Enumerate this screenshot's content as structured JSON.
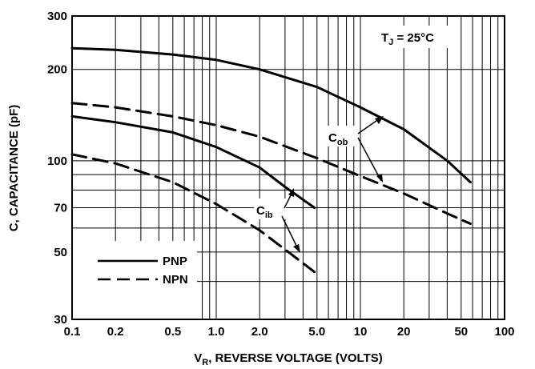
{
  "chart_data": {
    "type": "line",
    "title": "",
    "xlabel": {
      "main": "V",
      "sub": "R",
      "rest": ", REVERSE VOLTAGE (VOLTS)"
    },
    "ylabel": "C, CAPACITANCE (pF)",
    "x_scale": "log",
    "y_scale": "log",
    "xlim": [
      0.1,
      100
    ],
    "ylim": [
      30,
      300
    ],
    "grid": true,
    "legend_position": "bottom-left",
    "x_tick_labels": [
      {
        "v": 0.1,
        "t": "0.1"
      },
      {
        "v": 0.2,
        "t": "0.2"
      },
      {
        "v": 0.5,
        "t": "0.5"
      },
      {
        "v": 1.0,
        "t": "1.0"
      },
      {
        "v": 2.0,
        "t": "2.0"
      },
      {
        "v": 5.0,
        "t": "5.0"
      },
      {
        "v": 10,
        "t": "10"
      },
      {
        "v": 20,
        "t": "20"
      },
      {
        "v": 50,
        "t": "50"
      },
      {
        "v": 100,
        "t": "100"
      }
    ],
    "y_tick_labels": [
      {
        "v": 30,
        "t": "30"
      },
      {
        "v": 50,
        "t": "50"
      },
      {
        "v": 70,
        "t": "70"
      },
      {
        "v": 100,
        "t": "100"
      },
      {
        "v": 200,
        "t": "200"
      },
      {
        "v": 300,
        "t": "300"
      }
    ],
    "legend": [
      {
        "label": "PNP",
        "style": "solid"
      },
      {
        "label": "NPN",
        "style": "dashed"
      }
    ],
    "annotations": {
      "temperature": {
        "main": "T",
        "sub": "J",
        "rest": " = 25°C"
      },
      "cob": {
        "main": "C",
        "sub": "ob"
      },
      "cib": {
        "main": "C",
        "sub": "ib"
      }
    },
    "series": [
      {
        "style": "solid",
        "x": [
          0.1,
          0.2,
          0.5,
          1.0,
          2.0,
          5.0,
          10,
          20,
          40,
          58
        ],
        "y": [
          235,
          232,
          224,
          215,
          200,
          175,
          150,
          127,
          100,
          85
        ]
      },
      {
        "style": "dashed",
        "x": [
          0.1,
          0.2,
          0.5,
          1.0,
          2.0,
          5.0,
          10,
          20,
          40,
          58
        ],
        "y": [
          155,
          150,
          140,
          131,
          120,
          102,
          89,
          78,
          67,
          62
        ]
      },
      {
        "style": "solid",
        "x": [
          0.1,
          0.2,
          0.5,
          1.0,
          2.0,
          3.0,
          4.8
        ],
        "y": [
          140,
          134,
          124,
          111,
          95,
          82,
          70
        ]
      },
      {
        "style": "dashed",
        "x": [
          0.1,
          0.2,
          0.5,
          1.0,
          2.0,
          3.0,
          4.8
        ],
        "y": [
          105,
          98,
          85,
          72,
          59,
          51,
          43
        ]
      }
    ]
  }
}
